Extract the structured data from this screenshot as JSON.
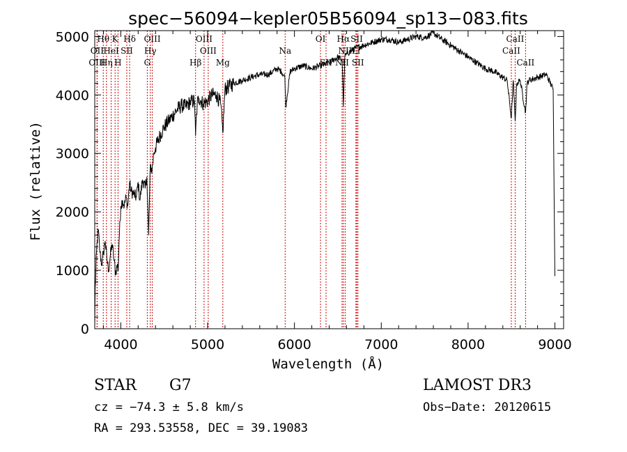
{
  "chart_data": {
    "type": "line",
    "title": "spec−56094−kepler05B56094_sp13−083.fits",
    "xlabel": "Wavelength (Å)",
    "ylabel": "Flux (relative)",
    "xlim": [
      3700,
      9100
    ],
    "ylim": [
      0,
      5100
    ],
    "xticks": [
      4000,
      5000,
      6000,
      7000,
      8000,
      9000
    ],
    "yticks": [
      0,
      1000,
      2000,
      3000,
      4000,
      5000
    ],
    "series": [
      {
        "name": "flux",
        "x": [
          3700,
          3705,
          3720,
          3740,
          3760,
          3780,
          3800,
          3820,
          3840,
          3860,
          3880,
          3900,
          3920,
          3940,
          3960,
          3970,
          3980,
          4000,
          4020,
          4040,
          4060,
          4080,
          4100,
          4120,
          4150,
          4180,
          4200,
          4220,
          4250,
          4280,
          4300,
          4320,
          4340,
          4360,
          4380,
          4400,
          4450,
          4500,
          4550,
          4600,
          4650,
          4700,
          4750,
          4800,
          4850,
          4861,
          4880,
          4900,
          4950,
          5000,
          5050,
          5100,
          5150,
          5175,
          5200,
          5300,
          5400,
          5500,
          5600,
          5700,
          5800,
          5850,
          5890,
          5900,
          5950,
          6000,
          6100,
          6200,
          6300,
          6400,
          6500,
          6550,
          6563,
          6580,
          6600,
          6700,
          6800,
          6900,
          7000,
          7100,
          7200,
          7300,
          7400,
          7500,
          7600,
          7700,
          7800,
          7900,
          8000,
          8100,
          8200,
          8300,
          8400,
          8450,
          8498,
          8520,
          8542,
          8560,
          8600,
          8662,
          8680,
          8700,
          8800,
          8900,
          8980,
          9000
        ],
        "values": [
          0,
          700,
          1300,
          1700,
          1300,
          1100,
          1300,
          1500,
          1200,
          1000,
          1250,
          1450,
          1200,
          950,
          1100,
          1000,
          1500,
          2100,
          2200,
          2100,
          2250,
          2100,
          2500,
          2350,
          2300,
          2250,
          2500,
          2200,
          2550,
          2400,
          2600,
          1600,
          2800,
          2700,
          3000,
          3100,
          3300,
          3450,
          3550,
          3650,
          3750,
          3820,
          3800,
          3880,
          3900,
          3300,
          3850,
          3950,
          3850,
          3900,
          4000,
          4000,
          3850,
          3350,
          4100,
          4200,
          4250,
          4300,
          4350,
          4350,
          4450,
          4400,
          4300,
          3800,
          4400,
          4450,
          4500,
          4450,
          4500,
          4550,
          4650,
          4600,
          3800,
          4650,
          4700,
          4800,
          4850,
          4900,
          4950,
          4950,
          4900,
          4950,
          5000,
          4980,
          5060,
          4950,
          4850,
          4750,
          4650,
          4550,
          4450,
          4400,
          4300,
          4250,
          3600,
          4250,
          3550,
          4200,
          4250,
          3700,
          4200,
          4250,
          4300,
          4350,
          4100,
          900
        ]
      }
    ],
    "spectral_lines": [
      {
        "label": "Hθ",
        "x": 3798,
        "row": 1
      },
      {
        "label": "K",
        "x": 3934,
        "row": 1
      },
      {
        "label": "Hδ",
        "x": 4102,
        "row": 1
      },
      {
        "label": "OIII",
        "x": 4363,
        "row": 1
      },
      {
        "label": "OIII",
        "x": 4959,
        "row": 1
      },
      {
        "label": "OI",
        "x": 6300,
        "row": 1
      },
      {
        "label": "Hα",
        "x": 6563,
        "row": 1
      },
      {
        "label": "SII",
        "x": 6717,
        "row": 1
      },
      {
        "label": "CaII",
        "x": 8542,
        "row": 1
      },
      {
        "label": "OII",
        "x": 3727,
        "row": 2
      },
      {
        "label": "HeI",
        "x": 3889,
        "row": 2
      },
      {
        "label": "SII",
        "x": 4069,
        "row": 2
      },
      {
        "label": "Hγ",
        "x": 4340,
        "row": 2
      },
      {
        "label": "OIII",
        "x": 5007,
        "row": 2
      },
      {
        "label": "Na",
        "x": 5893,
        "row": 2
      },
      {
        "label": "NII",
        "x": 6584,
        "row": 2
      },
      {
        "label": "Li",
        "x": 6708,
        "row": 2
      },
      {
        "label": "CaII",
        "x": 8498,
        "row": 2
      },
      {
        "label": "OIII",
        "x": 3727,
        "row": 3
      },
      {
        "label": "Hη",
        "x": 3835,
        "row": 3
      },
      {
        "label": "H",
        "x": 3968,
        "row": 3
      },
      {
        "label": "G",
        "x": 4305,
        "row": 3
      },
      {
        "label": "Hβ",
        "x": 4861,
        "row": 3
      },
      {
        "label": "Mg",
        "x": 5175,
        "row": 3
      },
      {
        "label": "SII",
        "x": 6364,
        "row": 3
      },
      {
        "label": "NII",
        "x": 6548,
        "row": 3
      },
      {
        "label": "SII",
        "x": 6731,
        "row": 3
      },
      {
        "label": "CaII",
        "x": 8662,
        "row": 3
      }
    ]
  },
  "info": {
    "class_label": "STAR",
    "subclass_label": "G7",
    "cz_text": "cz = −74.3 ± 5.8 km/s",
    "coords_text": "RA = 293.53558, DEC =  39.19083",
    "survey_label": "LAMOST DR3",
    "obs_date_text": "Obs−Date: 20120615"
  },
  "colors": {
    "line": "#000000",
    "marker": "#cc0000",
    "background": "#ffffff"
  }
}
